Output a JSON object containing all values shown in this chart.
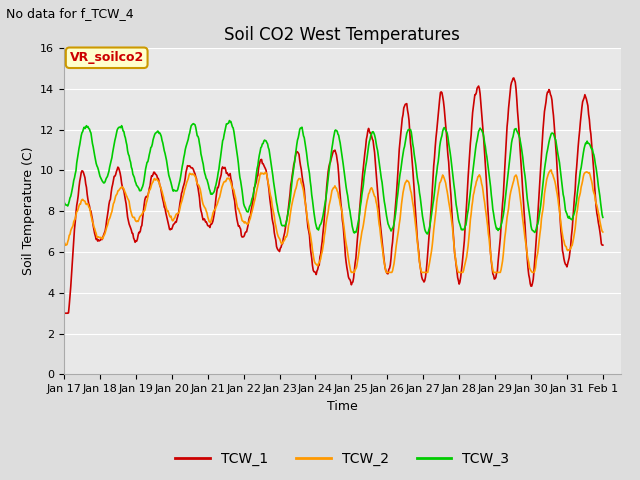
{
  "title": "Soil CO2 West Temperatures",
  "subtitle": "No data for f_TCW_4",
  "xlabel": "Time",
  "ylabel": "Soil Temperature (C)",
  "ylim": [
    0,
    16
  ],
  "yticks": [
    0,
    2,
    4,
    6,
    8,
    10,
    12,
    14,
    16
  ],
  "x_tick_labels": [
    "Jan 17",
    "Jan 18",
    "Jan 19",
    "Jan 20",
    "Jan 21",
    "Jan 22",
    "Jan 23",
    "Jan 24",
    "Jan 25",
    "Jan 26",
    "Jan 27",
    "Jan 28",
    "Jan 29",
    "Jan 30",
    "Jan 31",
    "Feb 1"
  ],
  "legend_labels": [
    "TCW_1",
    "TCW_2",
    "TCW_3"
  ],
  "line_colors": [
    "#cc0000",
    "#ff9900",
    "#00cc00"
  ],
  "fig_bg_color": "#dddddd",
  "plot_bg_color": "#e8e8e8",
  "annotation_box_text": "VR_soilco2",
  "annotation_box_facecolor": "#ffffcc",
  "annotation_box_edgecolor": "#cc9900",
  "annotation_box_textcolor": "#cc0000",
  "grid_color": "#ffffff",
  "tick_label_fontsize": 8,
  "axis_label_fontsize": 9,
  "title_fontsize": 12,
  "subtitle_fontsize": 9
}
